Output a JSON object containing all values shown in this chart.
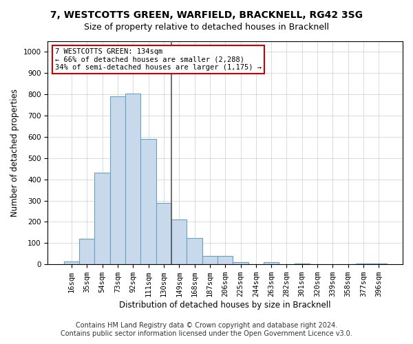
{
  "title_line1": "7, WESTCOTTS GREEN, WARFIELD, BRACKNELL, RG42 3SG",
  "title_line2": "Size of property relative to detached houses in Bracknell",
  "xlabel": "Distribution of detached houses by size in Bracknell",
  "ylabel": "Number of detached properties",
  "bin_labels": [
    "16sqm",
    "35sqm",
    "54sqm",
    "73sqm",
    "92sqm",
    "111sqm",
    "130sqm",
    "149sqm",
    "168sqm",
    "187sqm",
    "206sqm",
    "225sqm",
    "244sqm",
    "263sqm",
    "282sqm",
    "301sqm",
    "320sqm",
    "339sqm",
    "358sqm",
    "377sqm",
    "396sqm"
  ],
  "bar_heights": [
    15,
    120,
    430,
    790,
    805,
    590,
    290,
    210,
    125,
    40,
    38,
    12,
    0,
    10,
    0,
    5,
    0,
    0,
    0,
    5,
    5
  ],
  "bar_color": "#c9d9ec",
  "bar_edge_color": "#6a9fc0",
  "vline_color": "#555555",
  "annotation_text": "7 WESTCOTTS GREEN: 134sqm\n← 66% of detached houses are smaller (2,288)\n34% of semi-detached houses are larger (1,175) →",
  "annotation_box_color": "#ffffff",
  "annotation_box_edge_color": "#cc0000",
  "ylim": [
    0,
    1050
  ],
  "yticks": [
    0,
    100,
    200,
    300,
    400,
    500,
    600,
    700,
    800,
    900,
    1000
  ],
  "grid_color": "#cccccc",
  "footer_line1": "Contains HM Land Registry data © Crown copyright and database right 2024.",
  "footer_line2": "Contains public sector information licensed under the Open Government Licence v3.0.",
  "bg_color": "#ffffff",
  "title_fontsize": 10,
  "subtitle_fontsize": 9,
  "axis_label_fontsize": 8.5,
  "tick_fontsize": 7.5,
  "footer_fontsize": 7
}
